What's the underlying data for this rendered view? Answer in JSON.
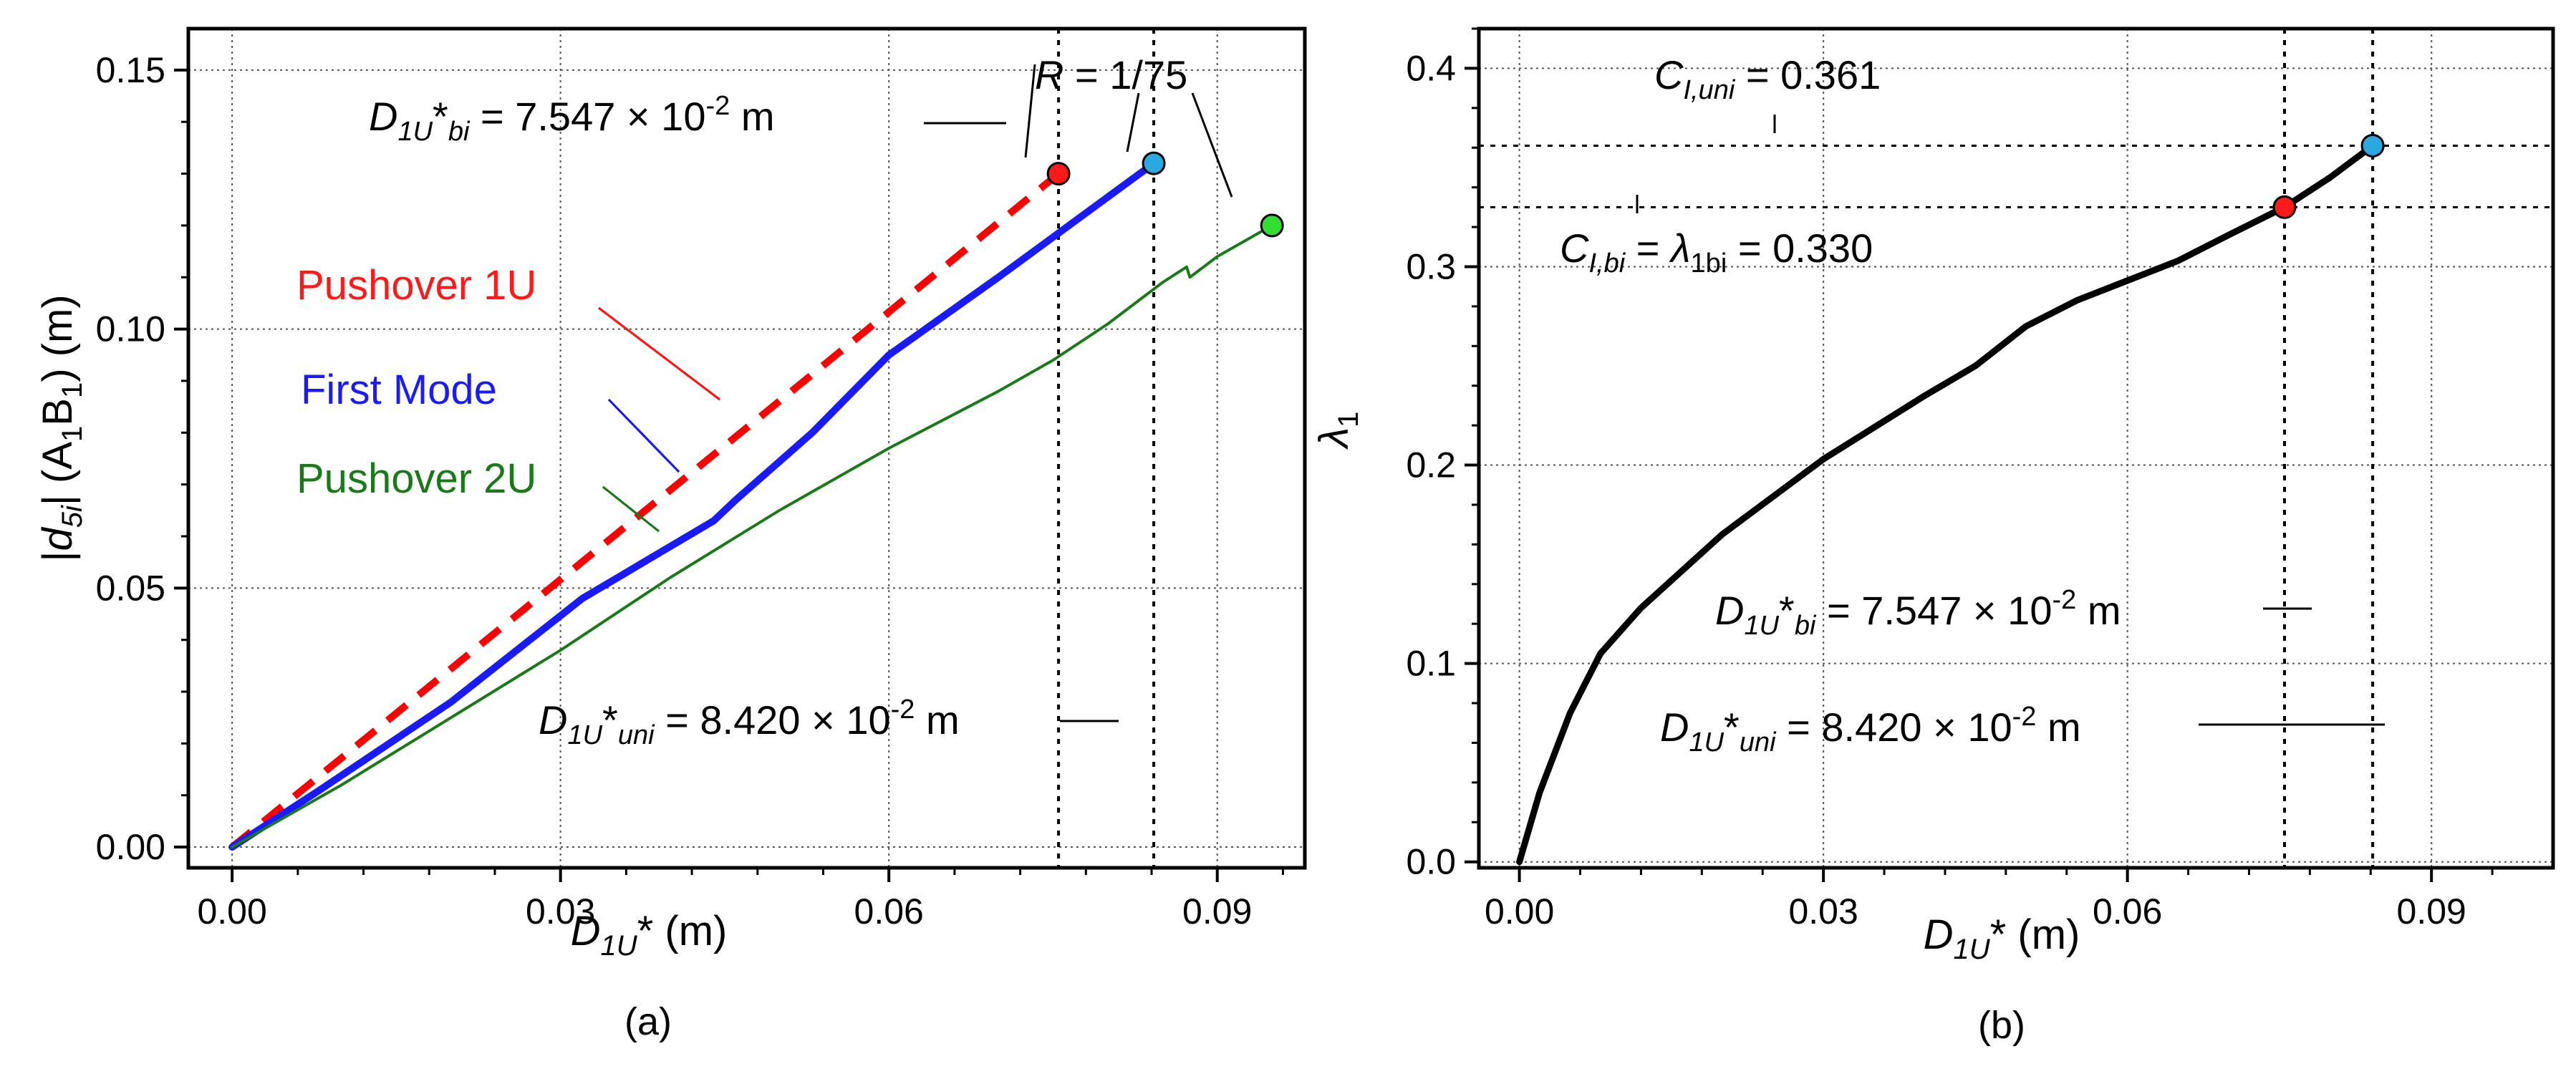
{
  "chart_data": [
    {
      "panel": "(a)",
      "type": "line",
      "xlabel": "D1U* (m)",
      "ylabel": "|d5i| (A1B1) (m)",
      "xlim": [
        -0.004,
        0.098
      ],
      "ylim": [
        -0.004,
        0.158
      ],
      "xticks": [
        0.0,
        0.03,
        0.06,
        0.09
      ],
      "xtick_labels": [
        "0.00",
        "0.03",
        "0.06",
        "0.09"
      ],
      "yticks": [
        0.0,
        0.05,
        0.1,
        0.15
      ],
      "ytick_labels": [
        "0.00",
        "0.05",
        "0.10",
        "0.15"
      ],
      "series": [
        {
          "name": "Pushover 1U",
          "color": "#ff0000",
          "style": "dashed",
          "x": [
            0.0,
            0.0755
          ],
          "y": [
            0.0,
            0.13
          ]
        },
        {
          "name": "First Mode",
          "color": "#1a1aff",
          "style": "solid-thick",
          "x": [
            0.0,
            0.008,
            0.02,
            0.032,
            0.044,
            0.046,
            0.053,
            0.06,
            0.07,
            0.0842
          ],
          "y": [
            0.0,
            0.011,
            0.028,
            0.048,
            0.063,
            0.067,
            0.08,
            0.095,
            0.11,
            0.132
          ]
        },
        {
          "name": "Pushover 2U",
          "color": "#1a7a1a",
          "style": "solid-thin",
          "x": [
            0.0,
            0.01,
            0.02,
            0.03,
            0.04,
            0.05,
            0.06,
            0.07,
            0.075,
            0.08,
            0.085,
            0.0872,
            0.0875,
            0.09,
            0.095
          ],
          "y": [
            0.0,
            0.012,
            0.025,
            0.038,
            0.052,
            0.065,
            0.077,
            0.088,
            0.094,
            0.101,
            0.109,
            0.112,
            0.11,
            0.114,
            0.12
          ]
        }
      ],
      "markers": [
        {
          "name": "bi-point",
          "x": 0.0755,
          "y": 0.13,
          "color": "#ff1a1a"
        },
        {
          "name": "uni-point",
          "x": 0.0842,
          "y": 0.132,
          "color": "#29a9e0"
        },
        {
          "name": "R-point",
          "x": 0.095,
          "y": 0.12,
          "color": "#33dd33"
        }
      ],
      "reference_lines": [
        {
          "orientation": "vertical",
          "x": 0.0755,
          "style": "dotted"
        },
        {
          "orientation": "vertical",
          "x": 0.0842,
          "style": "dotted"
        }
      ],
      "annotations": {
        "r_label": "R = 1/75",
        "d_bi": "D1U*bi = 7.547 × 10-2 m",
        "d_uni": "D1U*uni = 8.420 × 10-2 m",
        "pushover_1u": "Pushover 1U",
        "first_mode": "First Mode",
        "pushover_2u": "Pushover 2U"
      }
    },
    {
      "panel": "(b)",
      "type": "line",
      "xlabel": "D1U* (m)",
      "ylabel": "λ1",
      "xlim": [
        -0.004,
        0.102
      ],
      "ylim": [
        -0.003,
        0.42
      ],
      "xticks": [
        0.0,
        0.03,
        0.06,
        0.09
      ],
      "xtick_labels": [
        "0.00",
        "0.03",
        "0.06",
        "0.09"
      ],
      "yticks": [
        0.0,
        0.1,
        0.2,
        0.3,
        0.4
      ],
      "ytick_labels": [
        "0.0",
        "0.1",
        "0.2",
        "0.3",
        "0.4"
      ],
      "series": [
        {
          "name": "capacity",
          "color": "#000000",
          "x": [
            0.0,
            0.002,
            0.005,
            0.008,
            0.012,
            0.02,
            0.03,
            0.04,
            0.045,
            0.05,
            0.055,
            0.06,
            0.065,
            0.07,
            0.0755,
            0.08,
            0.0842
          ],
          "y": [
            0.0,
            0.035,
            0.075,
            0.105,
            0.128,
            0.165,
            0.203,
            0.235,
            0.25,
            0.27,
            0.283,
            0.293,
            0.303,
            0.316,
            0.33,
            0.345,
            0.361
          ]
        }
      ],
      "markers": [
        {
          "name": "bi-point",
          "x": 0.0755,
          "y": 0.33,
          "color": "#ff1a1a"
        },
        {
          "name": "uni-point",
          "x": 0.0842,
          "y": 0.361,
          "color": "#29a9e0"
        }
      ],
      "reference_lines": [
        {
          "orientation": "vertical",
          "x": 0.0755,
          "style": "dotted"
        },
        {
          "orientation": "vertical",
          "x": 0.0842,
          "style": "dotted"
        },
        {
          "orientation": "horizontal",
          "y": 0.33,
          "style": "dotted"
        },
        {
          "orientation": "horizontal",
          "y": 0.361,
          "style": "dotted"
        }
      ],
      "annotations": {
        "c_uni": "CI,uni = 0.361",
        "c_bi": "CI,bi = λ1bi = 0.330",
        "d_bi": "D1U*bi = 7.547 × 10-2 m",
        "d_uni": "D1U*uni = 8.420 × 10-2 m"
      }
    }
  ],
  "panel_labels": {
    "a": "(a)",
    "b": "(b)"
  },
  "text": {
    "a_ylabel_d": "d",
    "a_ylabel_5i": "5i",
    "a_ylabel_rest": " (A",
    "a_ylabel_1a": "1",
    "a_ylabel_B": "B",
    "a_ylabel_1b": "1",
    "a_ylabel_unit": ") (m)",
    "xlabel_D": "D",
    "xlabel_sub": "1U",
    "xlabel_unit": "* (m)",
    "b_ylabel_lambda": "λ",
    "b_ylabel_sub": "1",
    "R_label_R": "R",
    "R_label_rest": " = 1/75",
    "D": "D",
    "sub_1U": "1U",
    "star": "*",
    "sub_bi": "bi",
    "sub_uni": "uni",
    "bi_value": " = 7.547 × 10",
    "uni_value": " = 8.420 × 10",
    "exp": "-2",
    "unit_m": " m",
    "C": "C",
    "sub_I_uni": "I,uni",
    "sub_I_bi": "I,bi",
    "c_uni_value": " = 0.361",
    "eq": " = ",
    "lambda": "λ",
    "sub_1bi": "1bi",
    "c_bi_value": " = 0.330",
    "pushover_1u": "Pushover 1U",
    "first_mode": "First Mode",
    "pushover_2u": "Pushover 2U"
  }
}
